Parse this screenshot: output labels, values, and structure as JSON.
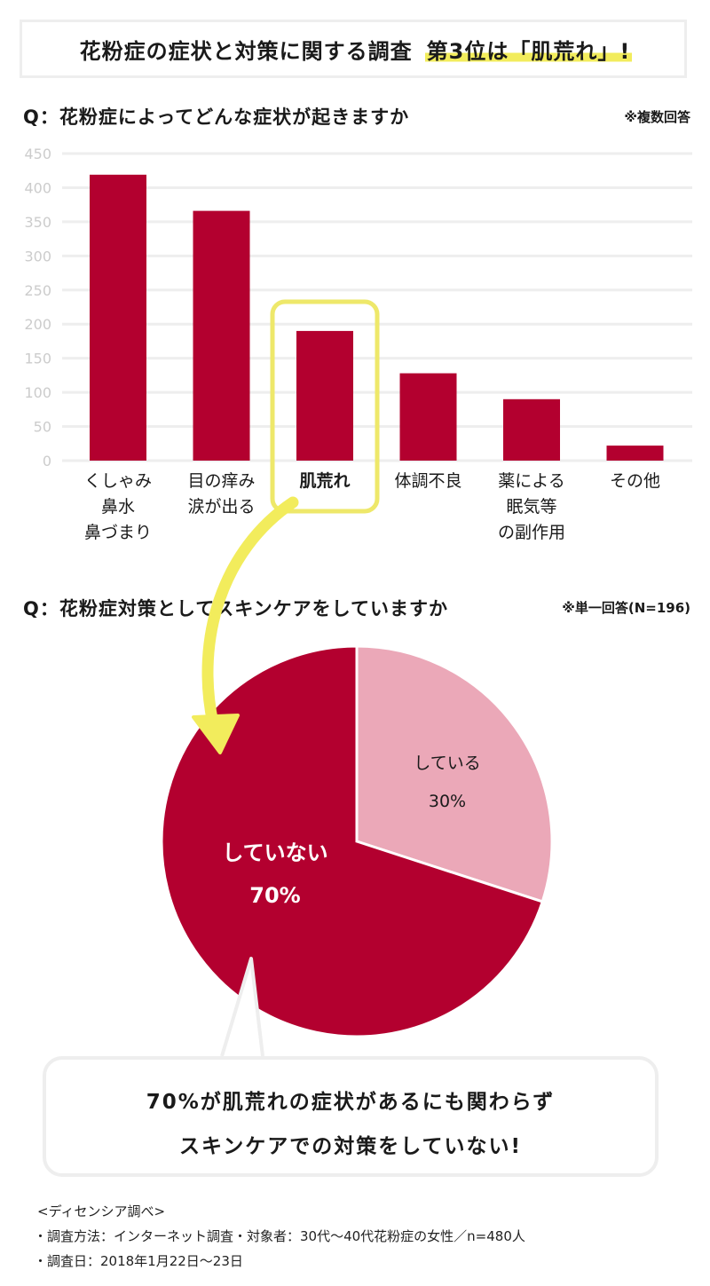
{
  "title": {
    "main": "花粉症の症状と対策に関する調査",
    "highlight": "第3位は「肌荒れ」!"
  },
  "q1": {
    "question": "Q：花粉症によってどんな症状が起きますか",
    "note": "※複数回答"
  },
  "q2": {
    "question": "Q：花粉症対策としてスキンケアをしていますか",
    "note": "※単一回答(N=196)"
  },
  "chart_data": [
    {
      "type": "bar",
      "categories": [
        [
          "くしゃみ",
          "鼻水",
          "鼻づまり"
        ],
        [
          "目の痒み",
          "涙が出る"
        ],
        [
          "肌荒れ"
        ],
        [
          "体調不良"
        ],
        [
          "薬による",
          "眠気等",
          "の副作用"
        ],
        [
          "その他"
        ]
      ],
      "values": [
        419,
        366,
        190,
        128,
        90,
        22
      ],
      "ylim": [
        0,
        450
      ],
      "yticks": [
        0,
        50,
        100,
        150,
        200,
        250,
        300,
        350,
        400,
        450
      ],
      "highlighted_category_index": 2,
      "grid": true,
      "colors": {
        "bar": "#b3002f",
        "highlight_box": "#eee86a",
        "grid": "#eeeeee",
        "tick": "#cccccc"
      }
    },
    {
      "type": "pie",
      "slices": [
        {
          "label": "している",
          "value": 30,
          "value_label": "30%",
          "color": "#eba8b8"
        },
        {
          "label": "していない",
          "value": 70,
          "value_label": "70%",
          "color": "#b3002f"
        }
      ]
    }
  ],
  "callout": {
    "line1": "70%が肌荒れの症状があるにも関わらず",
    "line2": "スキンケアでの対策をしていない!"
  },
  "source": {
    "heading": "<ディセンシア調べ>",
    "method": "・調査方法：インターネット調査・対象者：30代〜40代花粉症の女性／n=480人",
    "date": "・調査日：2018年1月22日〜23日"
  },
  "colors": {
    "accent": "#b3002f",
    "yellow": "#f2ec5c",
    "border": "#eeeeee"
  }
}
